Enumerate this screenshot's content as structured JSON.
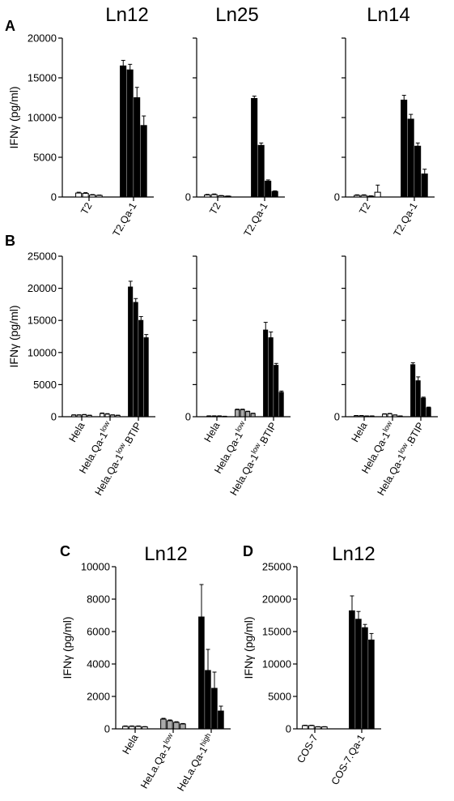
{
  "chart_data": [
    {
      "panel": "A",
      "title": "Ln12",
      "type": "bar",
      "ylabel": "IFNγ (pg/ml)",
      "ylim": [
        0,
        20000
      ],
      "yticks": [
        "0",
        "5000",
        "10000",
        "15000",
        "20000"
      ],
      "categories": [
        {
          "label": "T2",
          "values": [
            500,
            450,
            250,
            200
          ],
          "errors": [
            100,
            100,
            60,
            50
          ],
          "fills": [
            "white",
            "white",
            "white",
            "white"
          ]
        },
        {
          "label": "T2.Qa-1",
          "values": [
            16500,
            16000,
            12500,
            9000
          ],
          "errors": [
            700,
            700,
            1300,
            1200
          ],
          "fills": [
            "black",
            "black",
            "black",
            "black"
          ]
        }
      ]
    },
    {
      "panel": "",
      "title": "Ln25",
      "type": "bar",
      "ylabel": "",
      "ylim": [
        0,
        20000
      ],
      "yticks": [
        "0",
        "",
        "",
        "",
        ""
      ],
      "categories": [
        {
          "label": "T2",
          "values": [
            250,
            300,
            150,
            100
          ],
          "errors": [
            80,
            80,
            40,
            30
          ],
          "fills": [
            "white",
            "white",
            "white",
            "white"
          ]
        },
        {
          "label": "T2.Qa-1",
          "values": [
            12400,
            6500,
            2000,
            700
          ],
          "errors": [
            300,
            300,
            150,
            80
          ],
          "fills": [
            "black",
            "black",
            "black",
            "black"
          ]
        }
      ]
    },
    {
      "panel": "",
      "title": "Ln14",
      "type": "bar",
      "ylabel": "",
      "ylim": [
        0,
        20000
      ],
      "yticks": [
        "0",
        "",
        "",
        "",
        ""
      ],
      "categories": [
        {
          "label": "T2",
          "values": [
            200,
            200,
            100,
            600
          ],
          "errors": [
            80,
            80,
            50,
            900
          ],
          "fills": [
            "white",
            "white",
            "white",
            "white"
          ]
        },
        {
          "label": "T2.Qa-1",
          "values": [
            12200,
            9800,
            6400,
            2900
          ],
          "errors": [
            600,
            600,
            400,
            600
          ],
          "fills": [
            "black",
            "black",
            "black",
            "black"
          ]
        }
      ]
    },
    {
      "panel": "B",
      "title": "",
      "type": "bar",
      "ylabel": "IFNγ (pg/ml)",
      "ylim": [
        0,
        25000
      ],
      "yticks": [
        "0",
        "5000",
        "10000",
        "15000",
        "20000",
        "25000"
      ],
      "categories": [
        {
          "label": "Hela",
          "values": [
            250,
            250,
            300,
            200
          ],
          "errors": [
            50,
            50,
            50,
            40
          ],
          "fills": [
            "white",
            "white",
            "white",
            "white"
          ]
        },
        {
          "label": "Hela.Qa-1",
          "sup": "low",
          "values": [
            500,
            400,
            250,
            200
          ],
          "errors": [
            80,
            80,
            50,
            40
          ],
          "fills": [
            "white",
            "white",
            "white",
            "white"
          ]
        },
        {
          "label": "Hela.Qa-1",
          "sup": "low",
          "suffix": ".BTIP",
          "values": [
            20200,
            17800,
            15000,
            12300
          ],
          "errors": [
            900,
            600,
            600,
            500
          ],
          "fills": [
            "black",
            "black",
            "black",
            "black"
          ]
        }
      ]
    },
    {
      "panel": "",
      "title": "",
      "type": "bar",
      "ylabel": "",
      "ylim": [
        0,
        25000
      ],
      "yticks": [
        "0",
        "",
        "",
        "",
        "",
        ""
      ],
      "categories": [
        {
          "label": "Hela",
          "values": [
            100,
            100,
            100,
            50
          ],
          "errors": [
            40,
            40,
            40,
            30
          ],
          "fills": [
            "white",
            "white",
            "white",
            "white"
          ]
        },
        {
          "label": "Hela.Qa-1",
          "sup": "low",
          "values": [
            1100,
            1100,
            800,
            500
          ],
          "errors": [
            80,
            80,
            60,
            50
          ],
          "fills": [
            "#aaaaaa",
            "#aaaaaa",
            "#aaaaaa",
            "#aaaaaa"
          ]
        },
        {
          "label": "Hela.Qa-1",
          "sup": "low",
          "suffix": ".BTIP",
          "values": [
            13500,
            12300,
            8000,
            3800
          ],
          "errors": [
            1200,
            900,
            300,
            200
          ],
          "fills": [
            "black",
            "black",
            "black",
            "black"
          ]
        }
      ]
    },
    {
      "panel": "",
      "title": "",
      "type": "bar",
      "ylabel": "",
      "ylim": [
        0,
        25000
      ],
      "yticks": [
        "0",
        "",
        "",
        "",
        "",
        ""
      ],
      "categories": [
        {
          "label": "Hela",
          "values": [
            150,
            150,
            100,
            100
          ],
          "errors": [
            40,
            40,
            30,
            30
          ],
          "fills": [
            "white",
            "white",
            "white",
            "white"
          ]
        },
        {
          "label": "Hela.Qa-1",
          "sup": "low",
          "values": [
            400,
            450,
            250,
            100
          ],
          "errors": [
            60,
            60,
            40,
            30
          ],
          "fills": [
            "white",
            "white",
            "white",
            "white"
          ]
        },
        {
          "label": "Hela.Qa-1",
          "sup": "low",
          "suffix": ".BTIP",
          "values": [
            8100,
            5600,
            2900,
            1400
          ],
          "errors": [
            300,
            600,
            150,
            100
          ],
          "fills": [
            "black",
            "black",
            "black",
            "black"
          ]
        }
      ]
    },
    {
      "panel": "C",
      "title": "Ln12",
      "type": "bar",
      "ylabel": "IFNγ (pg/ml)",
      "ylim": [
        0,
        10000
      ],
      "yticks": [
        "0",
        "2000",
        "4000",
        "6000",
        "8000",
        "10000"
      ],
      "categories": [
        {
          "label": "Hela",
          "values": [
            150,
            150,
            150,
            120
          ],
          "errors": [
            30,
            30,
            30,
            20
          ],
          "fills": [
            "white",
            "white",
            "white",
            "white"
          ]
        },
        {
          "label": "HeLa.Qa-1",
          "sup": "low",
          "values": [
            600,
            500,
            400,
            300
          ],
          "errors": [
            50,
            50,
            40,
            30
          ],
          "fills": [
            "#aaaaaa",
            "#aaaaaa",
            "#aaaaaa",
            "#aaaaaa"
          ]
        },
        {
          "label": "HeLa.Qa-1",
          "sup": "high",
          "values": [
            6900,
            3600,
            2500,
            1100
          ],
          "errors": [
            2000,
            1300,
            1000,
            300
          ],
          "fills": [
            "black",
            "black",
            "black",
            "black"
          ]
        }
      ]
    },
    {
      "panel": "D",
      "title": "Ln12",
      "type": "bar",
      "ylabel": "IFNγ (pg/ml)",
      "ylim": [
        0,
        25000
      ],
      "yticks": [
        "0",
        "5000",
        "10000",
        "15000",
        "20000",
        "25000"
      ],
      "categories": [
        {
          "label": "COS-7",
          "values": [
            500,
            500,
            300,
            300
          ],
          "errors": [
            60,
            60,
            40,
            40
          ],
          "fills": [
            "white",
            "white",
            "white",
            "white"
          ]
        },
        {
          "label": "COS-7.Qa-1",
          "values": [
            18200,
            16900,
            15600,
            13700
          ],
          "errors": [
            2300,
            1200,
            500,
            1000
          ],
          "fills": [
            "black",
            "black",
            "black",
            "black"
          ]
        }
      ]
    }
  ]
}
